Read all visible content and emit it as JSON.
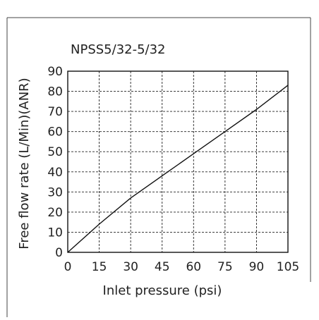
{
  "chart_data": {
    "type": "line",
    "title": "NPSS5/32-5/32",
    "xlabel": "Inlet pressure (psi)",
    "ylabel": "Free flow rate  (L/Min)(ANR)",
    "x_ticks": [
      0,
      15,
      30,
      45,
      60,
      75,
      90,
      105
    ],
    "y_ticks": [
      0,
      10,
      20,
      30,
      40,
      50,
      60,
      70,
      80,
      90
    ],
    "xlim": [
      0,
      105
    ],
    "ylim": [
      0,
      90
    ],
    "grid": true,
    "series": [
      {
        "x": [
          0,
          15,
          30,
          45,
          60,
          75,
          90,
          105
        ],
        "y": [
          0,
          14,
          27,
          38,
          49,
          60,
          71,
          83
        ]
      }
    ]
  }
}
